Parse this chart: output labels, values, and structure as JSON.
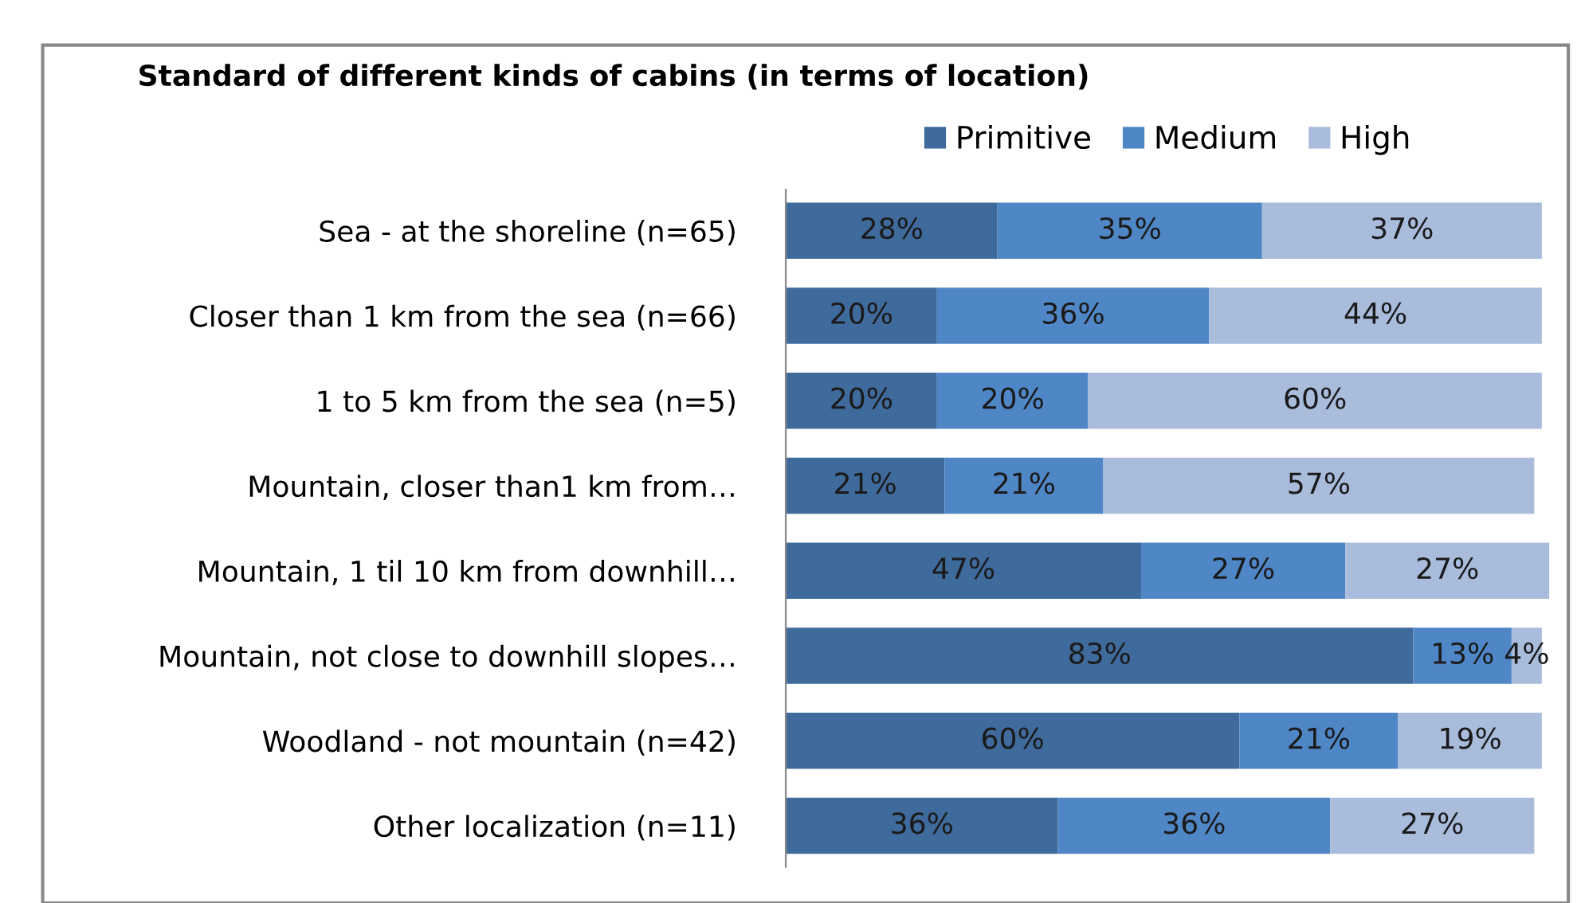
{
  "chart_data": {
    "type": "bar",
    "orientation": "horizontal",
    "stacked": true,
    "title": "Standard of different kinds of cabins (in terms of location)",
    "categories": [
      "Sea - at the shoreline (n=65)",
      "Closer than 1 km from the sea (n=66)",
      "1 to 5 km from the sea (n=5)",
      "Mountain, closer than1 km from…",
      "Mountain, 1 til 10 km from downhill…",
      "Mountain, not close to downhill slopes…",
      "Woodland - not mountain (n=42)",
      "Other localization (n=11)"
    ],
    "series": [
      {
        "name": "Primitive",
        "color": "#3f6a9c",
        "values": [
          28,
          20,
          20,
          21,
          47,
          83,
          60,
          36
        ],
        "value_labels": [
          "28%",
          "20%",
          "20%",
          "21%",
          "47%",
          "83%",
          "60%",
          "36%"
        ]
      },
      {
        "name": "Medium",
        "color": "#4f86c6",
        "values": [
          35,
          36,
          20,
          21,
          27,
          13,
          21,
          36
        ],
        "value_labels": [
          "35%",
          "36%",
          "20%",
          "21%",
          "27%",
          "13%",
          "21%",
          "36%"
        ]
      },
      {
        "name": "High",
        "color": "#a9bcdc",
        "values": [
          37,
          44,
          60,
          57,
          27,
          4,
          19,
          27
        ],
        "value_labels": [
          "37%",
          "44%",
          "60%",
          "57%",
          "27%",
          "4%",
          "19%",
          "27%"
        ]
      }
    ],
    "legend": "top",
    "grid": false
  }
}
